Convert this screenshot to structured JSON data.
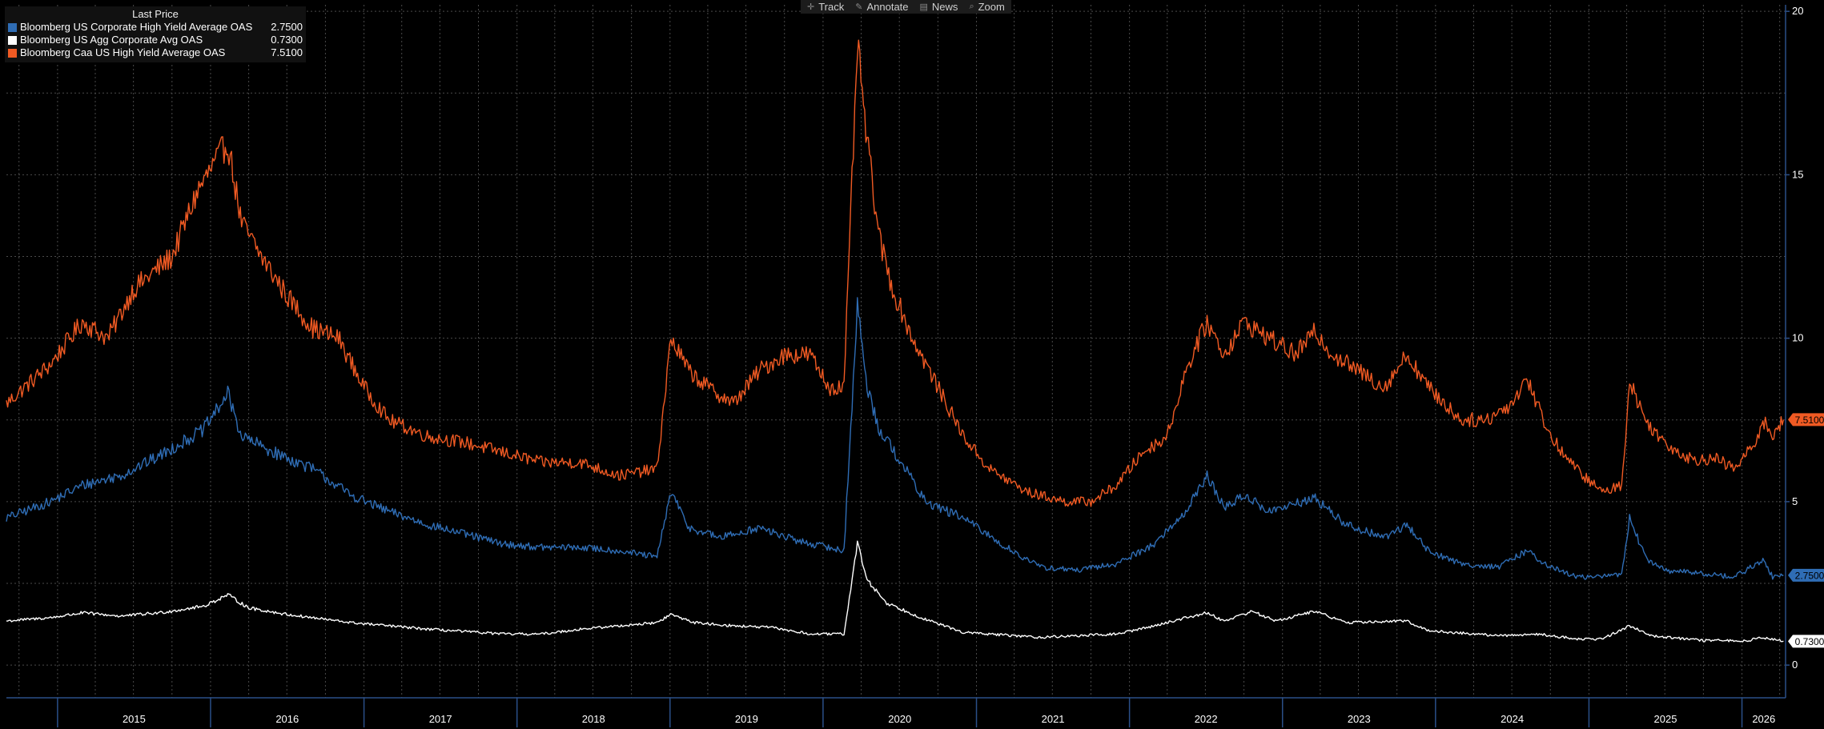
{
  "toolbar": {
    "items": [
      {
        "label": "Track",
        "icon": "crosshair-icon"
      },
      {
        "label": "Annotate",
        "icon": "pencil-icon"
      },
      {
        "label": "News",
        "icon": "news-icon"
      },
      {
        "label": "Zoom",
        "icon": "zoom-icon"
      }
    ]
  },
  "legend": {
    "header": "Last Price",
    "entries": [
      {
        "name": "Bloomberg US Corporate High Yield Average OAS",
        "value": "2.7500",
        "color": "#2f6db5"
      },
      {
        "name": "Bloomberg US Agg Corporate Avg OAS",
        "value": "0.7300",
        "color": "#ffffff"
      },
      {
        "name": "Bloomberg Caa US High Yield Average OAS",
        "value": "7.5100",
        "color": "#f05a23"
      }
    ]
  },
  "chart_data": {
    "type": "line",
    "title": "",
    "xlabel": "",
    "ylabel": "",
    "xlim": [
      "2014-09-01",
      "2026-04-15"
    ],
    "ylim": [
      -1,
      20.2
    ],
    "y_ticks": [
      0,
      5,
      10,
      15,
      20
    ],
    "x_ticks": [
      "2015",
      "2016",
      "2017",
      "2018",
      "2019",
      "2020",
      "2021",
      "2022",
      "2023",
      "2024",
      "2025",
      "2026"
    ],
    "grid": true,
    "y_axis_position": "right",
    "legend_position": "top-left",
    "last_value_labels": [
      "7.5100",
      "2.7500",
      "0.7300"
    ],
    "series": [
      {
        "name": "Bloomberg Caa US High Yield Average OAS",
        "color": "#f05a23",
        "points": [
          [
            "2014-09-01",
            8.0
          ],
          [
            "2014-12-15",
            9.2
          ],
          [
            "2015-03-01",
            10.5
          ],
          [
            "2015-05-01",
            10.0
          ],
          [
            "2015-07-01",
            11.5
          ],
          [
            "2015-10-01",
            12.5
          ],
          [
            "2015-12-01",
            14.5
          ],
          [
            "2016-02-11",
            16.0
          ],
          [
            "2016-03-15",
            13.5
          ],
          [
            "2016-05-01",
            12.5
          ],
          [
            "2016-07-01",
            11.3
          ],
          [
            "2016-09-01",
            10.3
          ],
          [
            "2016-11-01",
            10.0
          ],
          [
            "2017-01-01",
            8.5
          ],
          [
            "2017-03-01",
            7.5
          ],
          [
            "2017-06-01",
            7.0
          ],
          [
            "2017-09-01",
            6.8
          ],
          [
            "2017-12-01",
            6.5
          ],
          [
            "2018-03-01",
            6.2
          ],
          [
            "2018-06-01",
            6.2
          ],
          [
            "2018-09-01",
            5.8
          ],
          [
            "2018-12-01",
            6.0
          ],
          [
            "2019-01-03",
            10.0
          ],
          [
            "2019-02-15",
            9.0
          ],
          [
            "2019-04-01",
            8.5
          ],
          [
            "2019-06-01",
            8.0
          ],
          [
            "2019-08-01",
            9.0
          ],
          [
            "2019-10-01",
            9.5
          ],
          [
            "2019-12-01",
            9.5
          ],
          [
            "2020-01-15",
            8.5
          ],
          [
            "2020-02-20",
            8.5
          ],
          [
            "2020-03-23",
            19.0
          ],
          [
            "2020-04-15",
            16.0
          ],
          [
            "2020-05-15",
            13.0
          ],
          [
            "2020-06-15",
            11.5
          ],
          [
            "2020-08-01",
            10.0
          ],
          [
            "2020-10-01",
            8.5
          ],
          [
            "2020-12-01",
            7.0
          ],
          [
            "2021-02-01",
            6.0
          ],
          [
            "2021-05-01",
            5.3
          ],
          [
            "2021-08-01",
            5.0
          ],
          [
            "2021-10-01",
            5.0
          ],
          [
            "2021-12-01",
            5.5
          ],
          [
            "2022-02-01",
            6.5
          ],
          [
            "2022-04-01",
            7.0
          ],
          [
            "2022-05-15",
            9.0
          ],
          [
            "2022-07-05",
            10.5
          ],
          [
            "2022-08-15",
            9.5
          ],
          [
            "2022-10-01",
            10.5
          ],
          [
            "2022-12-01",
            10.0
          ],
          [
            "2023-02-01",
            9.5
          ],
          [
            "2023-03-20",
            10.2
          ],
          [
            "2023-05-01",
            9.5
          ],
          [
            "2023-07-01",
            9.0
          ],
          [
            "2023-09-01",
            8.5
          ],
          [
            "2023-10-25",
            9.5
          ],
          [
            "2023-12-15",
            8.5
          ],
          [
            "2024-03-01",
            7.5
          ],
          [
            "2024-05-01",
            7.5
          ],
          [
            "2024-07-01",
            8.0
          ],
          [
            "2024-08-05",
            8.8
          ],
          [
            "2024-10-01",
            7.0
          ],
          [
            "2024-12-01",
            6.0
          ],
          [
            "2025-02-01",
            5.3
          ],
          [
            "2025-03-20",
            5.5
          ],
          [
            "2025-04-08",
            8.7
          ],
          [
            "2025-05-15",
            7.5
          ],
          [
            "2025-07-01",
            6.8
          ],
          [
            "2025-09-01",
            6.3
          ],
          [
            "2025-11-01",
            6.3
          ],
          [
            "2025-12-15",
            6.0
          ],
          [
            "2026-02-01",
            6.8
          ],
          [
            "2026-02-20",
            7.5
          ],
          [
            "2026-03-15",
            7.0
          ],
          [
            "2026-04-10",
            7.51
          ]
        ]
      },
      {
        "name": "Bloomberg US Corporate High Yield Average OAS",
        "color": "#2f6db5",
        "points": [
          [
            "2014-09-01",
            4.5
          ],
          [
            "2014-12-15",
            5.0
          ],
          [
            "2015-03-01",
            5.5
          ],
          [
            "2015-06-01",
            5.8
          ],
          [
            "2015-09-01",
            6.4
          ],
          [
            "2015-12-15",
            7.2
          ],
          [
            "2016-02-11",
            8.3
          ],
          [
            "2016-03-15",
            7.0
          ],
          [
            "2016-06-01",
            6.5
          ],
          [
            "2016-09-01",
            6.0
          ],
          [
            "2016-12-01",
            5.2
          ],
          [
            "2017-03-01",
            4.7
          ],
          [
            "2017-06-01",
            4.3
          ],
          [
            "2017-09-01",
            4.0
          ],
          [
            "2017-12-01",
            3.7
          ],
          [
            "2018-03-01",
            3.6
          ],
          [
            "2018-06-01",
            3.6
          ],
          [
            "2018-09-01",
            3.5
          ],
          [
            "2018-12-01",
            3.3
          ],
          [
            "2019-01-03",
            5.3
          ],
          [
            "2019-02-15",
            4.2
          ],
          [
            "2019-05-01",
            3.9
          ],
          [
            "2019-08-01",
            4.2
          ],
          [
            "2019-11-01",
            3.8
          ],
          [
            "2020-02-20",
            3.5
          ],
          [
            "2020-03-23",
            11.0
          ],
          [
            "2020-04-15",
            8.5
          ],
          [
            "2020-05-15",
            7.2
          ],
          [
            "2020-07-01",
            6.3
          ],
          [
            "2020-09-01",
            5.0
          ],
          [
            "2020-12-01",
            4.5
          ],
          [
            "2021-03-01",
            3.7
          ],
          [
            "2021-06-01",
            3.0
          ],
          [
            "2021-09-01",
            2.9
          ],
          [
            "2021-12-01",
            3.1
          ],
          [
            "2022-03-01",
            3.7
          ],
          [
            "2022-05-15",
            4.7
          ],
          [
            "2022-07-05",
            5.8
          ],
          [
            "2022-08-15",
            4.8
          ],
          [
            "2022-10-01",
            5.2
          ],
          [
            "2022-12-01",
            4.7
          ],
          [
            "2023-03-20",
            5.1
          ],
          [
            "2023-06-01",
            4.3
          ],
          [
            "2023-09-01",
            3.9
          ],
          [
            "2023-10-25",
            4.3
          ],
          [
            "2023-12-15",
            3.5
          ],
          [
            "2024-03-01",
            3.1
          ],
          [
            "2024-06-01",
            3.0
          ],
          [
            "2024-08-05",
            3.5
          ],
          [
            "2024-10-01",
            3.0
          ],
          [
            "2024-12-01",
            2.7
          ],
          [
            "2025-02-01",
            2.7
          ],
          [
            "2025-03-20",
            2.8
          ],
          [
            "2025-04-08",
            4.5
          ],
          [
            "2025-05-15",
            3.3
          ],
          [
            "2025-07-01",
            2.9
          ],
          [
            "2025-10-01",
            2.8
          ],
          [
            "2025-12-15",
            2.7
          ],
          [
            "2026-02-20",
            3.2
          ],
          [
            "2026-03-15",
            2.7
          ],
          [
            "2026-04-10",
            2.75
          ]
        ]
      },
      {
        "name": "Bloomberg US Agg Corporate Avg OAS",
        "color": "#ffffff",
        "points": [
          [
            "2014-09-01",
            1.35
          ],
          [
            "2014-12-15",
            1.45
          ],
          [
            "2015-03-01",
            1.6
          ],
          [
            "2015-06-01",
            1.5
          ],
          [
            "2015-09-01",
            1.6
          ],
          [
            "2015-12-15",
            1.8
          ],
          [
            "2016-02-11",
            2.15
          ],
          [
            "2016-04-01",
            1.75
          ],
          [
            "2016-07-01",
            1.55
          ],
          [
            "2016-12-01",
            1.3
          ],
          [
            "2017-06-01",
            1.1
          ],
          [
            "2017-12-01",
            0.95
          ],
          [
            "2018-03-01",
            0.95
          ],
          [
            "2018-06-01",
            1.1
          ],
          [
            "2018-12-01",
            1.3
          ],
          [
            "2019-01-03",
            1.55
          ],
          [
            "2019-03-01",
            1.3
          ],
          [
            "2019-06-01",
            1.2
          ],
          [
            "2019-09-01",
            1.15
          ],
          [
            "2019-12-01",
            0.95
          ],
          [
            "2020-02-20",
            0.95
          ],
          [
            "2020-03-23",
            3.73
          ],
          [
            "2020-04-15",
            2.6
          ],
          [
            "2020-06-01",
            1.9
          ],
          [
            "2020-09-01",
            1.4
          ],
          [
            "2020-12-01",
            1.0
          ],
          [
            "2021-06-01",
            0.85
          ],
          [
            "2021-12-01",
            0.95
          ],
          [
            "2022-03-01",
            1.2
          ],
          [
            "2022-05-15",
            1.45
          ],
          [
            "2022-07-05",
            1.6
          ],
          [
            "2022-08-15",
            1.35
          ],
          [
            "2022-10-20",
            1.65
          ],
          [
            "2022-12-15",
            1.35
          ],
          [
            "2023-03-20",
            1.65
          ],
          [
            "2023-06-01",
            1.3
          ],
          [
            "2023-10-25",
            1.35
          ],
          [
            "2023-12-15",
            1.05
          ],
          [
            "2024-06-01",
            0.9
          ],
          [
            "2024-09-01",
            0.95
          ],
          [
            "2024-12-01",
            0.8
          ],
          [
            "2025-02-01",
            0.8
          ],
          [
            "2025-04-08",
            1.2
          ],
          [
            "2025-06-01",
            0.9
          ],
          [
            "2025-10-01",
            0.75
          ],
          [
            "2026-01-15",
            0.75
          ],
          [
            "2026-02-20",
            0.85
          ],
          [
            "2026-04-10",
            0.73
          ]
        ]
      }
    ]
  }
}
